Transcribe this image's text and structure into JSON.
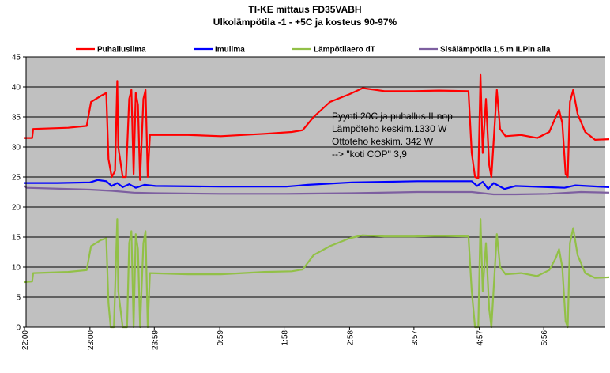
{
  "chart_data": {
    "type": "line",
    "title": "TI-KE mittaus FD35VABH",
    "subtitle": "Ulkolämpötila -1 - +5C ja kosteus 90-97%",
    "xlabel": "",
    "ylabel": "",
    "ylim": [
      0,
      45
    ],
    "yticks": [
      0,
      5,
      10,
      15,
      20,
      25,
      30,
      35,
      40,
      45
    ],
    "grid": true,
    "legend_position": "top",
    "x_tick_labels": [
      "22:00",
      "23:00",
      "23:59",
      "0:59",
      "1:58",
      "2:58",
      "3:57",
      "4:57",
      "5:56"
    ],
    "annotation": [
      "Pyynti 20C ja puhallus II-nop",
      "Lämpöteho keskim.1330 W",
      "Ottoteho keskim. 342 W",
      "--> \"koti COP\" 3,9"
    ],
    "series": [
      {
        "name": "Puhallusilma",
        "color": "#ff0000",
        "points": [
          [
            "22:00",
            31.5
          ],
          [
            "22:07",
            31.5
          ],
          [
            "22:08",
            33
          ],
          [
            "22:40",
            33.2
          ],
          [
            "22:57",
            33.5
          ],
          [
            "23:01",
            37.5
          ],
          [
            "23:10",
            38.5
          ],
          [
            "23:15",
            39
          ],
          [
            "23:17",
            28
          ],
          [
            "23:20",
            25
          ],
          [
            "23:23",
            26
          ],
          [
            "23:25",
            41
          ],
          [
            "23:26",
            30
          ],
          [
            "23:30",
            25
          ],
          [
            "23:33",
            25
          ],
          [
            "23:36",
            38
          ],
          [
            "23:38",
            39.5
          ],
          [
            "23:40",
            25.5
          ],
          [
            "23:42",
            39
          ],
          [
            "23:44",
            37
          ],
          [
            "23:46",
            24.5
          ],
          [
            "23:49",
            38
          ],
          [
            "23:51",
            39.5
          ],
          [
            "23:53",
            25
          ],
          [
            "23:55",
            32
          ],
          [
            "24:30",
            32
          ],
          [
            "25:00",
            31.8
          ],
          [
            "25:40",
            32.2
          ],
          [
            "26:05",
            32.5
          ],
          [
            "26:15",
            32.8
          ],
          [
            "26:25",
            35
          ],
          [
            "26:40",
            37.5
          ],
          [
            "26:58",
            38.8
          ],
          [
            "27:10",
            39.8
          ],
          [
            "27:30",
            39.3
          ],
          [
            "27:57",
            39.3
          ],
          [
            "28:20",
            39.4
          ],
          [
            "28:47",
            39.3
          ],
          [
            "28:50",
            29
          ],
          [
            "28:53",
            25
          ],
          [
            "28:56",
            24.8
          ],
          [
            "28:58",
            42
          ],
          [
            "29:00",
            29
          ],
          [
            "29:03",
            38
          ],
          [
            "29:06",
            27
          ],
          [
            "29:08",
            25
          ],
          [
            "29:13",
            39.5
          ],
          [
            "29:16",
            33
          ],
          [
            "29:21",
            31.8
          ],
          [
            "29:35",
            32
          ],
          [
            "29:50",
            31.5
          ],
          [
            "30:01",
            32.5
          ],
          [
            "30:07",
            35
          ],
          [
            "30:10",
            36.2
          ],
          [
            "30:13",
            34
          ],
          [
            "30:16",
            25.5
          ],
          [
            "30:18",
            25
          ],
          [
            "30:20",
            37.5
          ],
          [
            "30:23",
            39.5
          ],
          [
            "30:27",
            35.5
          ],
          [
            "30:34",
            32.5
          ],
          [
            "30:43",
            31.2
          ],
          [
            "30:56",
            31.3
          ]
        ]
      },
      {
        "name": "Imuilma",
        "color": "#0000ff",
        "points": [
          [
            "22:00",
            24
          ],
          [
            "22:30",
            24
          ],
          [
            "23:00",
            24.1
          ],
          [
            "23:07",
            24.5
          ],
          [
            "23:15",
            24.3
          ],
          [
            "23:20",
            23.5
          ],
          [
            "23:25",
            24
          ],
          [
            "23:30",
            23.3
          ],
          [
            "23:36",
            23.8
          ],
          [
            "23:42",
            23.2
          ],
          [
            "23:50",
            23.7
          ],
          [
            "24:00",
            23.5
          ],
          [
            "25:00",
            23.4
          ],
          [
            "26:00",
            23.4
          ],
          [
            "26:20",
            23.7
          ],
          [
            "27:00",
            24.1
          ],
          [
            "27:30",
            24.2
          ],
          [
            "28:00",
            24.3
          ],
          [
            "28:50",
            24.3
          ],
          [
            "28:55",
            23.5
          ],
          [
            "29:00",
            24.2
          ],
          [
            "29:05",
            23
          ],
          [
            "29:10",
            24
          ],
          [
            "29:20",
            23
          ],
          [
            "29:30",
            23.5
          ],
          [
            "30:00",
            23.3
          ],
          [
            "30:15",
            23.2
          ],
          [
            "30:25",
            23.6
          ],
          [
            "30:56",
            23.3
          ]
        ]
      },
      {
        "name": "Lämpötilaero dT",
        "color": "#92c047",
        "points": [
          [
            "22:00",
            7.5
          ],
          [
            "22:07",
            7.6
          ],
          [
            "22:08",
            9
          ],
          [
            "22:40",
            9.2
          ],
          [
            "22:57",
            9.5
          ],
          [
            "23:01",
            13.5
          ],
          [
            "23:10",
            14.5
          ],
          [
            "23:15",
            14.8
          ],
          [
            "23:17",
            4
          ],
          [
            "23:19",
            0
          ],
          [
            "23:22",
            0
          ],
          [
            "23:25",
            18
          ],
          [
            "23:26",
            6
          ],
          [
            "23:30",
            0
          ],
          [
            "23:34",
            0
          ],
          [
            "23:36",
            14
          ],
          [
            "23:38",
            16
          ],
          [
            "23:40",
            0
          ],
          [
            "23:42",
            15.5
          ],
          [
            "23:44",
            13
          ],
          [
            "23:46",
            0
          ],
          [
            "23:49",
            14
          ],
          [
            "23:51",
            16
          ],
          [
            "23:53",
            0
          ],
          [
            "23:55",
            9
          ],
          [
            "24:30",
            8.8
          ],
          [
            "25:00",
            8.8
          ],
          [
            "25:40",
            9.2
          ],
          [
            "26:05",
            9.3
          ],
          [
            "26:15",
            9.6
          ],
          [
            "26:25",
            12
          ],
          [
            "26:40",
            13.5
          ],
          [
            "26:58",
            14.8
          ],
          [
            "27:10",
            15.3
          ],
          [
            "27:30",
            15.1
          ],
          [
            "27:57",
            15.1
          ],
          [
            "28:20",
            15.2
          ],
          [
            "28:47",
            15.1
          ],
          [
            "28:50",
            6
          ],
          [
            "28:53",
            0
          ],
          [
            "28:56",
            0
          ],
          [
            "28:58",
            18
          ],
          [
            "29:00",
            6
          ],
          [
            "29:03",
            14
          ],
          [
            "29:06",
            3
          ],
          [
            "29:08",
            0
          ],
          [
            "29:13",
            15.5
          ],
          [
            "29:16",
            10
          ],
          [
            "29:21",
            8.8
          ],
          [
            "29:35",
            9
          ],
          [
            "29:50",
            8.5
          ],
          [
            "30:01",
            9.5
          ],
          [
            "30:07",
            11.5
          ],
          [
            "30:10",
            13
          ],
          [
            "30:13",
            10
          ],
          [
            "30:16",
            1
          ],
          [
            "30:18",
            0
          ],
          [
            "30:20",
            14
          ],
          [
            "30:23",
            16.5
          ],
          [
            "30:27",
            12
          ],
          [
            "30:34",
            9
          ],
          [
            "30:43",
            8.2
          ],
          [
            "30:56",
            8.3
          ]
        ]
      },
      {
        "name": "Sisälämpötila 1,5 m ILPin alla",
        "color": "#7d5fa0",
        "points": [
          [
            "22:00",
            23.5
          ],
          [
            "22:02",
            23.2
          ],
          [
            "22:20",
            23.1
          ],
          [
            "23:00",
            22.9
          ],
          [
            "23:20",
            22.7
          ],
          [
            "23:40",
            22.4
          ],
          [
            "24:00",
            22.3
          ],
          [
            "25:00",
            22.2
          ],
          [
            "26:00",
            22.2
          ],
          [
            "27:00",
            22.3
          ],
          [
            "28:00",
            22.5
          ],
          [
            "28:50",
            22.5
          ],
          [
            "29:10",
            22.1
          ],
          [
            "29:30",
            22.1
          ],
          [
            "30:00",
            22.2
          ],
          [
            "30:30",
            22.5
          ],
          [
            "30:56",
            22.4
          ]
        ]
      }
    ]
  }
}
